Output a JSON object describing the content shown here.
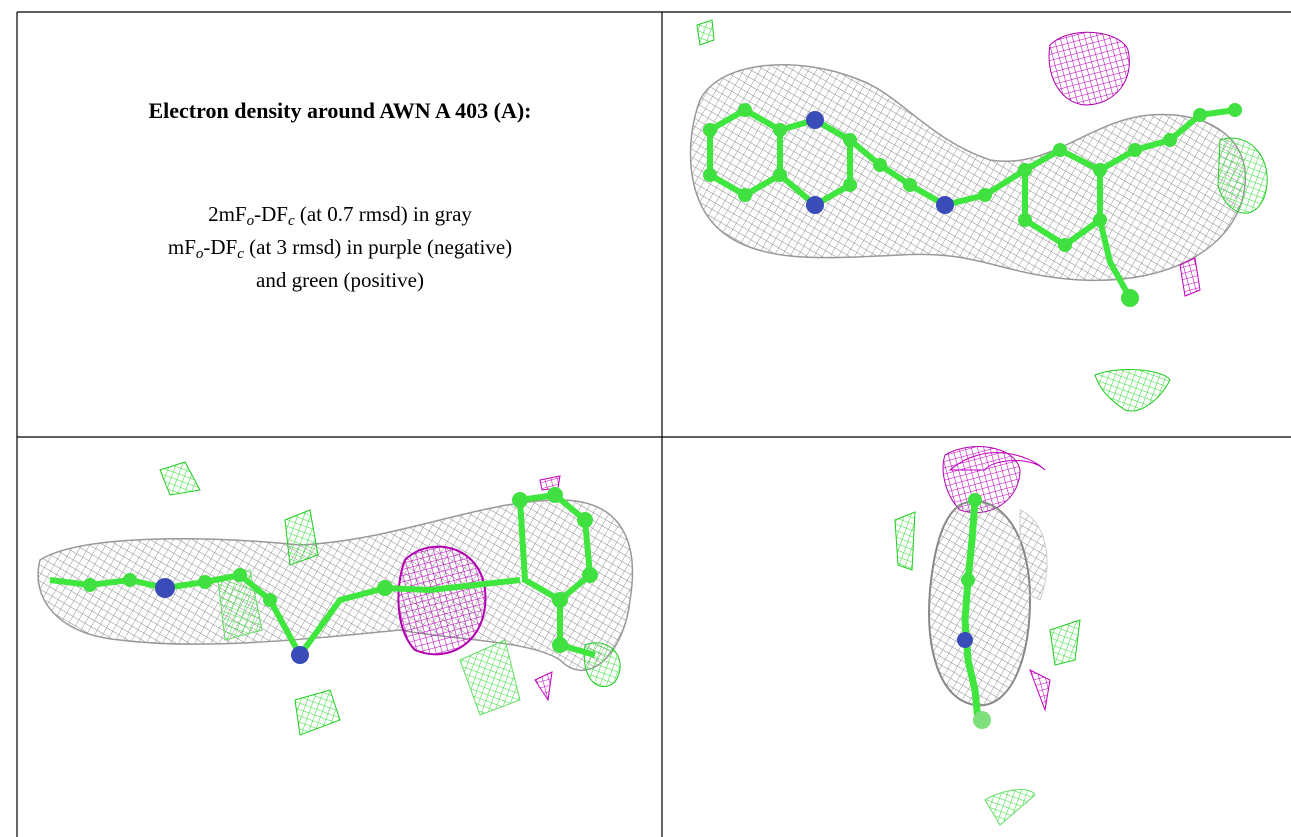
{
  "figure": {
    "title": "Electron density around AWN A 403 (A):",
    "legend": {
      "lines": [
        [
          "2mF",
          "o",
          "-DF",
          "c",
          " (at 0.7 rmsd) in gray"
        ],
        [
          "mF",
          "o",
          "-DF",
          "c",
          " (at 3 rmsd) in purple (negative)"
        ],
        [
          "and green (positive)"
        ]
      ]
    }
  }
}
